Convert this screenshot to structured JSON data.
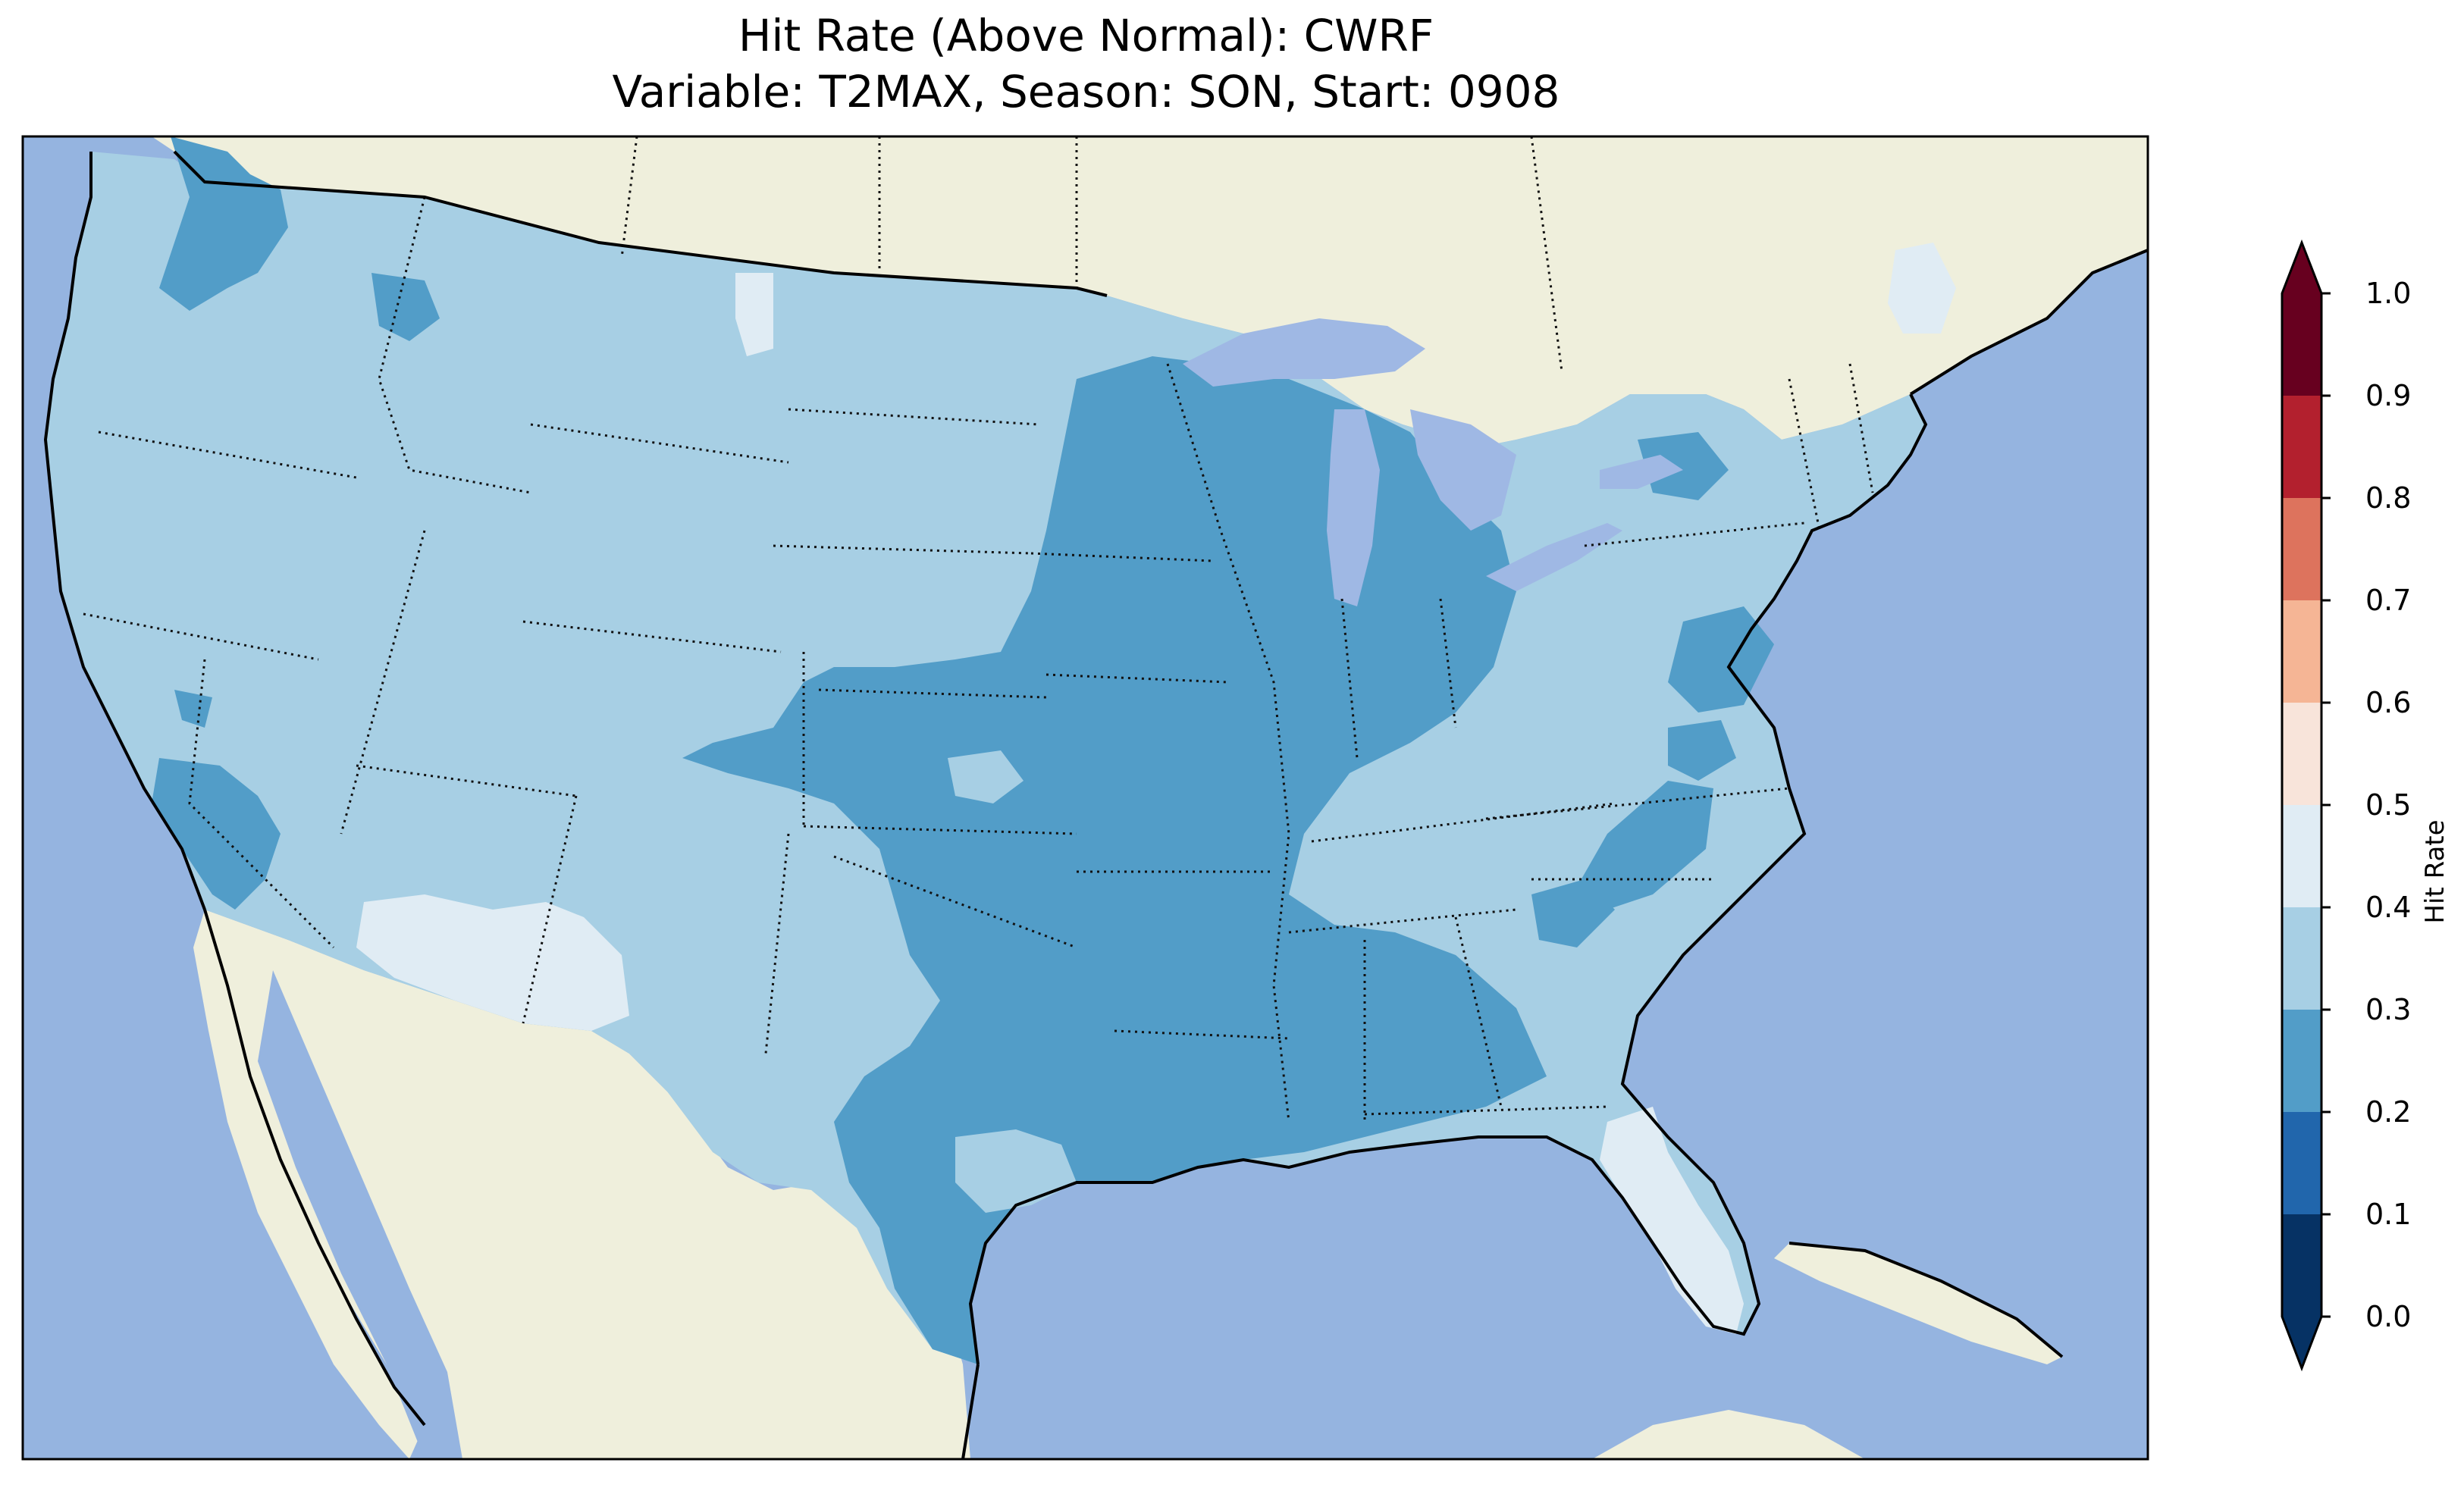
{
  "title": {
    "line1": "Hit Rate (Above Normal): CWRF",
    "line2": "Variable: T2MAX, Season: SON, Start: 0908"
  },
  "colors": {
    "ocean": "#95b4e0",
    "land": "#efefdc",
    "lake": "#9fb8e4",
    "bin_0_1": "#063264",
    "bin_1_2": "#2166ac",
    "bin_2_3": "#529dc8",
    "bin_3_4": "#a7cfe4",
    "bin_4_5": "#e0ecf4",
    "bin_5_6": "#f8e4da",
    "bin_6_7": "#f5b595",
    "bin_7_8": "#dd735d",
    "bin_8_9": "#b3202e",
    "bin_9_10": "#67001f"
  },
  "colorbar": {
    "label": "Hit Rate",
    "ticks": [
      "0.0",
      "0.1",
      "0.2",
      "0.3",
      "0.4",
      "0.5",
      "0.6",
      "0.7",
      "0.8",
      "0.9",
      "1.0"
    ]
  },
  "map_regions": [
    {
      "name": "Pacific Northwest",
      "bin": "0.2-0.3"
    },
    {
      "name": "West",
      "bin": "0.3-0.4"
    },
    {
      "name": "Central Valley California",
      "bin": "0.2-0.3"
    },
    {
      "name": "Arizona / New Mexico",
      "bin": "0.4-0.5"
    },
    {
      "name": "Great Plains",
      "bin": "0.3-0.4"
    },
    {
      "name": "Midwest / Mississippi Valley",
      "bin": "0.2-0.3"
    },
    {
      "name": "Texas",
      "bin": "0.2-0.3"
    },
    {
      "name": "Southeast",
      "bin": "0.3-0.4"
    },
    {
      "name": "Florida",
      "bin": "0.4-0.5"
    },
    {
      "name": "Northern Maine",
      "bin": "0.4-0.5"
    }
  ]
}
